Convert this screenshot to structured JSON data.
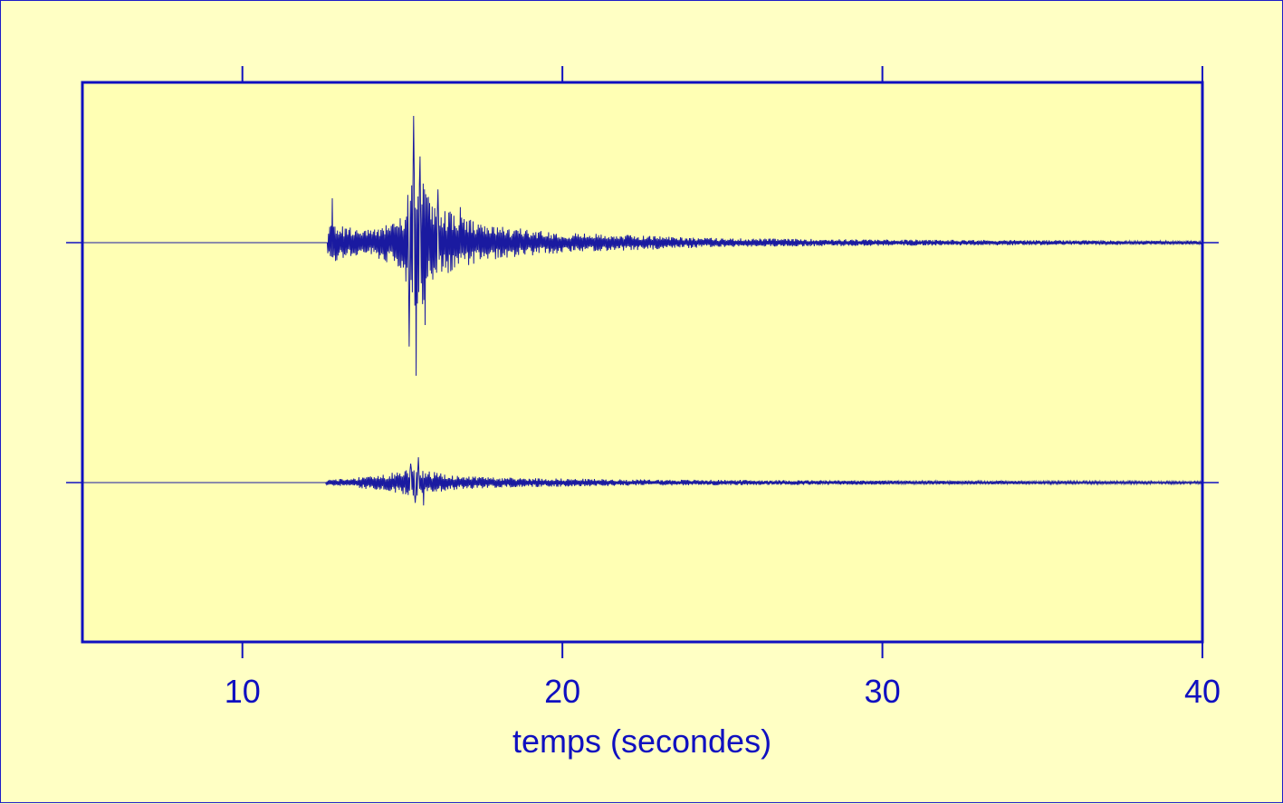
{
  "colors": {
    "background": "#ffffc4",
    "plot_background": "#ffffb4",
    "axis": "#1010c0",
    "trace": "#1a1aa0"
  },
  "chart_data": {
    "type": "line",
    "title": "",
    "xlabel": "temps (secondes)",
    "ylabel": "",
    "xlim": [
      5,
      40
    ],
    "ylim": [
      -1,
      1
    ],
    "x_ticks": [
      10,
      20,
      30,
      40
    ],
    "x_tick_labels": [
      "10",
      "20",
      "30",
      "40"
    ],
    "grid": false,
    "legend": "none",
    "series": [
      {
        "onset": 12.65,
        "baseline": 0,
        "peaks": [
          {
            "x": 12.8,
            "y": 0.35
          },
          {
            "x": 15.2,
            "y": -0.82
          },
          {
            "x": 15.35,
            "y": 1.0
          },
          {
            "x": 15.42,
            "y": -1.05
          },
          {
            "x": 15.55,
            "y": 0.68
          },
          {
            "x": 15.7,
            "y": -0.65
          },
          {
            "x": 16.1,
            "y": 0.42
          },
          {
            "x": 16.8,
            "y": 0.28
          }
        ],
        "envelope": [
          {
            "x": 12.65,
            "amp": 0.16
          },
          {
            "x": 14.0,
            "amp": 0.1
          },
          {
            "x": 15.0,
            "amp": 0.22
          },
          {
            "x": 15.4,
            "amp": 0.6
          },
          {
            "x": 16.0,
            "amp": 0.3
          },
          {
            "x": 17.5,
            "amp": 0.14
          },
          {
            "x": 20.0,
            "amp": 0.08
          },
          {
            "x": 25.0,
            "amp": 0.035
          },
          {
            "x": 30.0,
            "amp": 0.025
          },
          {
            "x": 40.0,
            "amp": 0.015
          }
        ]
      },
      {
        "onset": 12.6,
        "baseline": 0,
        "peaks": [
          {
            "x": 15.25,
            "y": 0.15
          },
          {
            "x": 15.4,
            "y": -0.16
          },
          {
            "x": 15.5,
            "y": 0.2
          },
          {
            "x": 15.65,
            "y": -0.18
          }
        ],
        "envelope": [
          {
            "x": 12.6,
            "amp": 0.02
          },
          {
            "x": 13.5,
            "amp": 0.04
          },
          {
            "x": 14.5,
            "amp": 0.07
          },
          {
            "x": 15.4,
            "amp": 0.11
          },
          {
            "x": 16.5,
            "amp": 0.06
          },
          {
            "x": 18.0,
            "amp": 0.04
          },
          {
            "x": 22.0,
            "amp": 0.025
          },
          {
            "x": 30.0,
            "amp": 0.016
          },
          {
            "x": 40.0,
            "amp": 0.01
          }
        ]
      }
    ]
  }
}
